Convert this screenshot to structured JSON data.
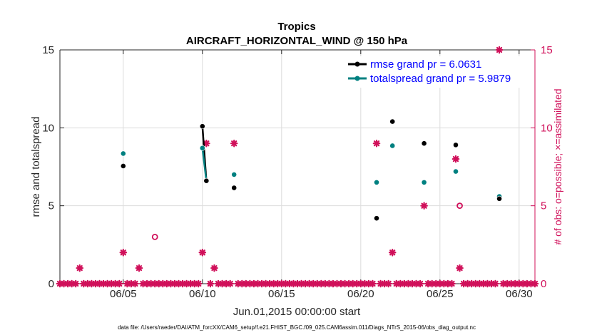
{
  "chart_data": {
    "type": "scatter",
    "title": "Tropics",
    "subtitle": "AIRCRAFT_HORIZONTAL_WIND @ 150 hPa",
    "xlabel": "Jun.01,2015 00:00:00 start",
    "ylabel": "rmse and totalspread",
    "ylabel_right": "# of obs: o=possible; ×=assimilated",
    "xlim": [
      1.0,
      31.0
    ],
    "ylim": [
      0,
      15
    ],
    "ylim_right": [
      0,
      15
    ],
    "x_ticks": [
      5,
      10,
      15,
      20,
      25,
      30
    ],
    "x_tick_labels": [
      "06/05",
      "06/10",
      "06/15",
      "06/20",
      "06/25",
      "06/30"
    ],
    "y_ticks": [
      0,
      5,
      10,
      15
    ],
    "y_tick_labels": [
      "0",
      "5",
      "10",
      "15"
    ],
    "y_ticks_right": [
      0,
      5,
      10,
      15
    ],
    "y_tick_labels_right": [
      "0",
      "5",
      "10",
      "15"
    ],
    "grid": true,
    "legend_position": "top-right",
    "footnote": "data file: /Users/raeder/DAI/ATM_forcXX/CAM6_setup/f.e21.FHIST_BGC.f09_025.CAM6assim.011/Diags_NTrS_2015-06/obs_diag_output.nc",
    "colors": {
      "rmse": "#000000",
      "totalspread": "#008080",
      "obs": "#d0105a",
      "axis_right": "#d0105a"
    },
    "series": [
      {
        "name": "rmse grand pr = 6.0631",
        "style": "line-marker",
        "points": [
          [
            5.0,
            7.55
          ],
          [
            10.0,
            10.1
          ],
          [
            10.25,
            6.6
          ],
          [
            12.0,
            6.15
          ],
          [
            21.0,
            4.2
          ],
          [
            22.0,
            10.4
          ],
          [
            24.0,
            9.0
          ],
          [
            26.0,
            8.9
          ],
          [
            28.75,
            5.45
          ]
        ],
        "segments": [
          [
            1,
            2
          ]
        ]
      },
      {
        "name": "totalspread grand pr = 5.9879",
        "style": "line-marker",
        "points": [
          [
            5.0,
            8.35
          ],
          [
            10.0,
            8.7
          ],
          [
            10.25,
            6.6
          ],
          [
            12.0,
            7.0
          ],
          [
            21.0,
            6.5
          ],
          [
            22.0,
            8.85
          ],
          [
            24.0,
            6.5
          ],
          [
            26.0,
            7.2
          ],
          [
            28.75,
            5.6
          ]
        ],
        "segments": [
          [
            1,
            2
          ]
        ]
      },
      {
        "name": "obs possible",
        "style": "open-circle",
        "points": [
          [
            7.0,
            3.0
          ],
          [
            26.25,
            5.0
          ]
        ]
      },
      {
        "name": "obs assimilated",
        "style": "star",
        "points": [
          [
            2.25,
            1
          ],
          [
            5.0,
            2
          ],
          [
            6.0,
            1
          ],
          [
            10.0,
            2
          ],
          [
            10.25,
            9
          ],
          [
            10.75,
            1
          ],
          [
            12.0,
            9
          ],
          [
            21.0,
            9
          ],
          [
            22.0,
            2
          ],
          [
            24.0,
            5
          ],
          [
            26.0,
            8
          ],
          [
            26.25,
            1
          ],
          [
            28.75,
            15
          ]
        ],
        "zero_days_start": 1.0,
        "zero_days_end": 31.0,
        "zero_days_step": 0.25
      }
    ]
  }
}
